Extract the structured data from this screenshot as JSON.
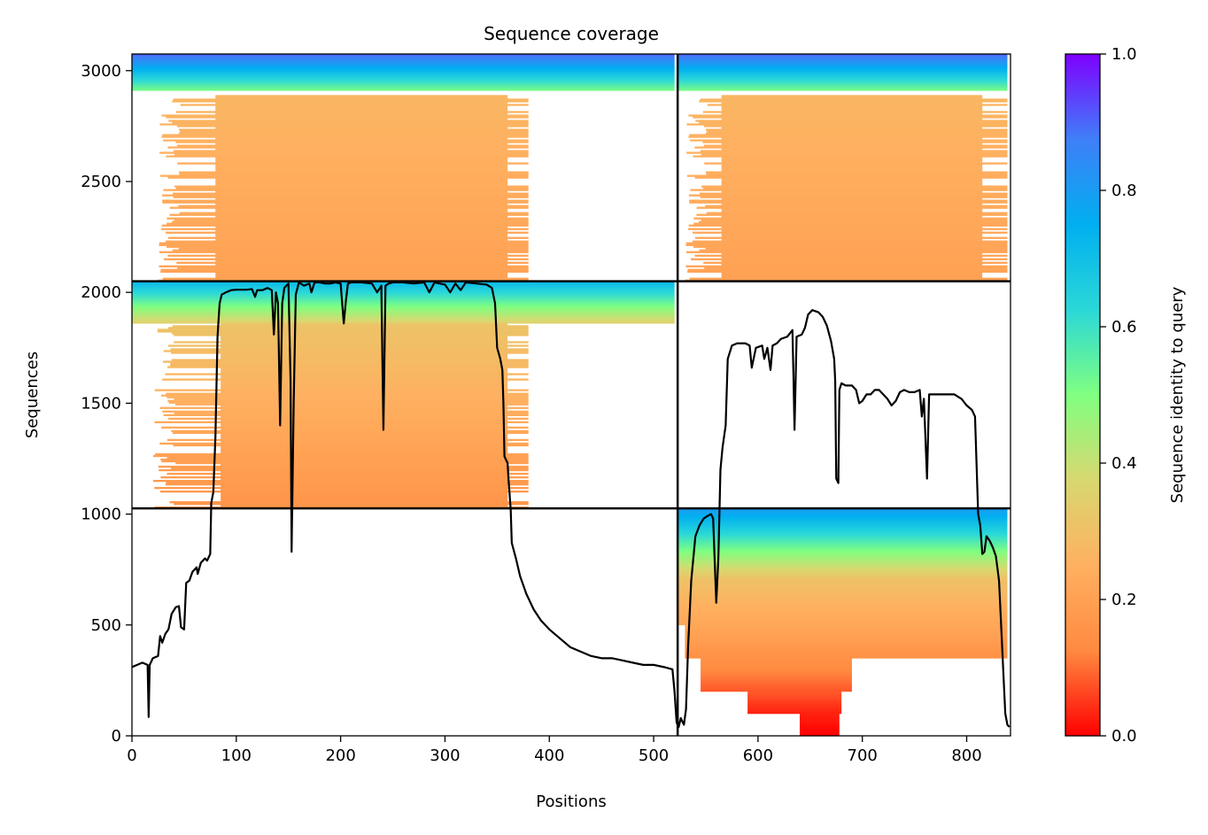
{
  "chart_data": {
    "type": "heatmap",
    "title": "Sequence coverage",
    "xlabel": "Positions",
    "ylabel": "Sequences",
    "xlim": [
      0,
      842
    ],
    "ylim": [
      0,
      3075
    ],
    "x_ticks": [
      0,
      100,
      200,
      300,
      400,
      500,
      600,
      700,
      800
    ],
    "y_ticks": [
      0,
      500,
      1000,
      1500,
      2000,
      2500,
      3000
    ],
    "grid": false,
    "colorbar": {
      "label": "Sequence identity to query",
      "range": [
        0,
        1
      ],
      "ticks": [
        0.0,
        0.2,
        0.4,
        0.6,
        0.8,
        1.0
      ],
      "tick_labels": [
        "0.0",
        "0.2",
        "0.4",
        "0.6",
        "0.8",
        "1.0"
      ],
      "colormap": "rainbow_r",
      "stops": [
        "#ff0000",
        "#ff8a40",
        "#ffb060",
        "#d8d870",
        "#80ff80",
        "#2ad8d8",
        "#00aff0",
        "#3f7ff8",
        "#7f00ff"
      ]
    },
    "separators": {
      "x": [
        523
      ],
      "y": [
        1026,
        2050
      ]
    },
    "blocks": [
      {
        "seq_range": [
          2050,
          3075
        ],
        "segments": [
          {
            "x_range": [
              0,
              520
            ],
            "rows": [
              {
                "seq_range": [
                  2910,
                  3075
                ],
                "x_range": [
                  0,
                  520
                ],
                "identity_range": [
                  0.52,
                  0.9
                ]
              },
              {
                "seq_range": [
                  2050,
                  2890
                ],
                "x_range": [
                  80,
                  360
                ],
                "identity_range": [
                  0.2,
                  0.27
                ]
              },
              {
                "seq_range": [
                  2050,
                  2890
                ],
                "x_range": [
                  25,
                  380
                ],
                "identity_range": [
                  0.2,
                  0.27
                ],
                "sparse": true
              }
            ]
          },
          {
            "x_range": [
              523,
              842
            ],
            "rows": [
              {
                "seq_range": [
                  2910,
                  3075
                ],
                "x_range": [
                  523,
                  839
                ],
                "identity_range": [
                  0.52,
                  0.9
                ]
              },
              {
                "seq_range": [
                  2050,
                  2890
                ],
                "x_range": [
                  565,
                  815
                ],
                "identity_range": [
                  0.2,
                  0.27
                ]
              },
              {
                "seq_range": [
                  2050,
                  2890
                ],
                "x_range": [
                  530,
                  839
                ],
                "identity_range": [
                  0.2,
                  0.27
                ],
                "sparse": true
              }
            ]
          }
        ]
      },
      {
        "seq_range": [
          1026,
          2050
        ],
        "segments": [
          {
            "x_range": [
              0,
              520
            ],
            "rows": [
              {
                "seq_range": [
                  1860,
                  2050
                ],
                "x_range": [
                  0,
                  520
                ],
                "identity_range": [
                  0.36,
                  0.72
                ]
              },
              {
                "seq_range": [
                  1026,
                  1860
                ],
                "x_range": [
                  85,
                  360
                ],
                "identity_range": [
                  0.16,
                  0.31
                ]
              },
              {
                "seq_range": [
                  1026,
                  1860
                ],
                "x_range": [
                  20,
                  380
                ],
                "identity_range": [
                  0.16,
                  0.31
                ],
                "sparse": true
              }
            ]
          }
        ]
      },
      {
        "seq_range": [
          0,
          1026
        ],
        "segments": [
          {
            "x_range": [
              523,
              842
            ],
            "rows": [
              {
                "seq_range": [
                  700,
                  1026
                ],
                "x_range": [
                  523,
                  839
                ],
                "identity_range": [
                  0.3,
                  0.8
                ]
              },
              {
                "seq_range": [
                  500,
                  700
                ],
                "x_range": [
                  523,
                  839
                ],
                "identity_range": [
                  0.22,
                  0.3
                ]
              },
              {
                "seq_range": [
                  350,
                  500
                ],
                "x_range": [
                  530,
                  839
                ],
                "identity_range": [
                  0.15,
                  0.22
                ]
              },
              {
                "seq_range": [
                  200,
                  350
                ],
                "x_range": [
                  545,
                  690
                ],
                "identity_range": [
                  0.08,
                  0.15
                ]
              },
              {
                "seq_range": [
                  100,
                  200
                ],
                "x_range": [
                  590,
                  680
                ],
                "identity_range": [
                  0.03,
                  0.08
                ]
              },
              {
                "seq_range": [
                  0,
                  100
                ],
                "x_range": [
                  640,
                  678
                ],
                "identity_range": [
                  0.0,
                  0.03
                ]
              }
            ]
          }
        ]
      }
    ],
    "series": [
      {
        "name": "coverage",
        "color": "#000000",
        "points": [
          [
            0,
            310
          ],
          [
            5,
            320
          ],
          [
            10,
            330
          ],
          [
            15,
            320
          ],
          [
            16,
            85
          ],
          [
            17,
            320
          ],
          [
            20,
            350
          ],
          [
            25,
            360
          ],
          [
            27,
            450
          ],
          [
            29,
            420
          ],
          [
            32,
            460
          ],
          [
            35,
            480
          ],
          [
            38,
            550
          ],
          [
            42,
            580
          ],
          [
            45,
            585
          ],
          [
            47,
            490
          ],
          [
            50,
            480
          ],
          [
            52,
            690
          ],
          [
            55,
            700
          ],
          [
            58,
            740
          ],
          [
            62,
            760
          ],
          [
            63,
            730
          ],
          [
            66,
            780
          ],
          [
            70,
            800
          ],
          [
            72,
            790
          ],
          [
            75,
            820
          ],
          [
            76,
            1050
          ],
          [
            78,
            1100
          ],
          [
            80,
            1350
          ],
          [
            82,
            1800
          ],
          [
            84,
            1950
          ],
          [
            86,
            1990
          ],
          [
            90,
            2000
          ],
          [
            95,
            2010
          ],
          [
            100,
            2012
          ],
          [
            110,
            2012
          ],
          [
            115,
            2015
          ],
          [
            118,
            1980
          ],
          [
            120,
            2010
          ],
          [
            125,
            2010
          ],
          [
            130,
            2020
          ],
          [
            134,
            2010
          ],
          [
            136,
            1810
          ],
          [
            138,
            2000
          ],
          [
            140,
            1950
          ],
          [
            142,
            1400
          ],
          [
            144,
            1950
          ],
          [
            146,
            2020
          ],
          [
            150,
            2040
          ],
          [
            152,
            1600
          ],
          [
            153,
            830
          ],
          [
            155,
            1500
          ],
          [
            157,
            1990
          ],
          [
            160,
            2045
          ],
          [
            165,
            2030
          ],
          [
            170,
            2040
          ],
          [
            172,
            2000
          ],
          [
            175,
            2045
          ],
          [
            180,
            2045
          ],
          [
            185,
            2040
          ],
          [
            190,
            2040
          ],
          [
            195,
            2045
          ],
          [
            200,
            2040
          ],
          [
            203,
            1860
          ],
          [
            205,
            1960
          ],
          [
            207,
            2040
          ],
          [
            210,
            2045
          ],
          [
            220,
            2045
          ],
          [
            230,
            2040
          ],
          [
            235,
            2000
          ],
          [
            239,
            2030
          ],
          [
            241,
            1380
          ],
          [
            243,
            2030
          ],
          [
            246,
            2040
          ],
          [
            250,
            2045
          ],
          [
            260,
            2045
          ],
          [
            270,
            2040
          ],
          [
            280,
            2045
          ],
          [
            285,
            2000
          ],
          [
            290,
            2045
          ],
          [
            300,
            2035
          ],
          [
            305,
            2000
          ],
          [
            310,
            2040
          ],
          [
            315,
            2010
          ],
          [
            320,
            2045
          ],
          [
            330,
            2040
          ],
          [
            340,
            2035
          ],
          [
            345,
            2020
          ],
          [
            348,
            1950
          ],
          [
            350,
            1750
          ],
          [
            353,
            1700
          ],
          [
            355,
            1650
          ],
          [
            356,
            1500
          ],
          [
            357,
            1260
          ],
          [
            360,
            1230
          ],
          [
            361,
            1150
          ],
          [
            363,
            1020
          ],
          [
            364,
            870
          ],
          [
            368,
            800
          ],
          [
            372,
            720
          ],
          [
            378,
            640
          ],
          [
            385,
            570
          ],
          [
            392,
            520
          ],
          [
            400,
            480
          ],
          [
            410,
            440
          ],
          [
            420,
            400
          ],
          [
            430,
            380
          ],
          [
            440,
            360
          ],
          [
            450,
            350
          ],
          [
            460,
            350
          ],
          [
            470,
            340
          ],
          [
            480,
            330
          ],
          [
            490,
            320
          ],
          [
            500,
            320
          ],
          [
            510,
            310
          ],
          [
            518,
            300
          ],
          [
            520,
            200
          ],
          [
            522,
            60
          ],
          [
            524,
            40
          ],
          [
            526,
            80
          ],
          [
            529,
            50
          ],
          [
            531,
            120
          ],
          [
            533,
            400
          ],
          [
            536,
            700
          ],
          [
            540,
            900
          ],
          [
            544,
            950
          ],
          [
            548,
            980
          ],
          [
            551,
            990
          ],
          [
            555,
            1000
          ],
          [
            557,
            980
          ],
          [
            560,
            600
          ],
          [
            562,
            800
          ],
          [
            564,
            1200
          ],
          [
            566,
            1300
          ],
          [
            569,
            1400
          ],
          [
            571,
            1700
          ],
          [
            575,
            1760
          ],
          [
            580,
            1770
          ],
          [
            588,
            1770
          ],
          [
            592,
            1760
          ],
          [
            594,
            1660
          ],
          [
            598,
            1750
          ],
          [
            604,
            1760
          ],
          [
            606,
            1700
          ],
          [
            609,
            1750
          ],
          [
            612,
            1650
          ],
          [
            614,
            1760
          ],
          [
            618,
            1770
          ],
          [
            622,
            1790
          ],
          [
            628,
            1800
          ],
          [
            633,
            1830
          ],
          [
            634,
            1620
          ],
          [
            635,
            1380
          ],
          [
            637,
            1800
          ],
          [
            642,
            1810
          ],
          [
            645,
            1840
          ],
          [
            648,
            1900
          ],
          [
            652,
            1920
          ],
          [
            658,
            1910
          ],
          [
            662,
            1890
          ],
          [
            666,
            1850
          ],
          [
            670,
            1780
          ],
          [
            673,
            1700
          ],
          [
            674,
            1600
          ],
          [
            675,
            1160
          ],
          [
            677,
            1140
          ],
          [
            678,
            1560
          ],
          [
            680,
            1590
          ],
          [
            684,
            1580
          ],
          [
            690,
            1580
          ],
          [
            694,
            1560
          ],
          [
            697,
            1500
          ],
          [
            700,
            1510
          ],
          [
            704,
            1540
          ],
          [
            708,
            1540
          ],
          [
            712,
            1560
          ],
          [
            716,
            1560
          ],
          [
            720,
            1540
          ],
          [
            724,
            1520
          ],
          [
            728,
            1490
          ],
          [
            732,
            1510
          ],
          [
            736,
            1550
          ],
          [
            740,
            1560
          ],
          [
            745,
            1550
          ],
          [
            750,
            1550
          ],
          [
            755,
            1560
          ],
          [
            757,
            1440
          ],
          [
            759,
            1520
          ],
          [
            762,
            1160
          ],
          [
            764,
            1540
          ],
          [
            768,
            1540
          ],
          [
            775,
            1540
          ],
          [
            780,
            1540
          ],
          [
            788,
            1540
          ],
          [
            795,
            1520
          ],
          [
            800,
            1490
          ],
          [
            805,
            1470
          ],
          [
            808,
            1440
          ],
          [
            811,
            1000
          ],
          [
            813,
            950
          ],
          [
            815,
            820
          ],
          [
            817,
            830
          ],
          [
            819,
            900
          ],
          [
            822,
            880
          ],
          [
            825,
            850
          ],
          [
            828,
            810
          ],
          [
            831,
            700
          ],
          [
            833,
            500
          ],
          [
            835,
            300
          ],
          [
            837,
            100
          ],
          [
            839,
            50
          ],
          [
            841,
            40
          ]
        ]
      }
    ]
  }
}
